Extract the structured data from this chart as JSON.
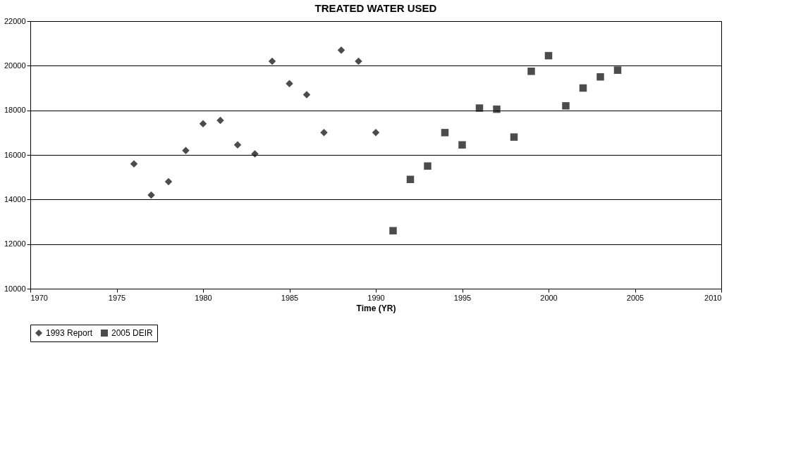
{
  "chart_data": {
    "type": "scatter",
    "title": "TREATED WATER USED",
    "xlabel": "Time (YR)",
    "series": [
      {
        "name": "1993 Report",
        "color": "#000000",
        "marker": "diamond",
        "x": [
          1976,
          1977,
          1978,
          1979,
          1980,
          1981,
          1982,
          1983,
          1984,
          1985,
          1986,
          1987,
          1988,
          1989,
          1990
        ],
        "values": [
          15600,
          14200,
          14800,
          16200,
          17400,
          17550,
          16450,
          16050,
          20200,
          19200,
          18700,
          17000,
          20700,
          20200,
          17000
        ]
      },
      {
        "name": "2005 DEIR",
        "color": "#000000",
        "marker": "square",
        "x": [
          1991,
          1992,
          1993,
          1994,
          1995,
          1996,
          1997,
          1998,
          1999,
          2000,
          2001,
          2002,
          2003,
          2004
        ],
        "values": [
          12600,
          14900,
          15500,
          17000,
          16450,
          18100,
          18050,
          16800,
          19750,
          20450,
          18200,
          19000,
          19500,
          19800
        ]
      }
    ],
    "xlim": [
      1970,
      2010
    ],
    "xticks": [
      1970,
      1975,
      1980,
      1985,
      1990,
      1995,
      2000,
      2005,
      2010
    ],
    "ylim": [
      10000,
      22000
    ],
    "yticks": [
      10000,
      12000,
      14000,
      16000,
      18000,
      20000,
      22000
    ],
    "grid": "y",
    "legend": "bottom"
  }
}
